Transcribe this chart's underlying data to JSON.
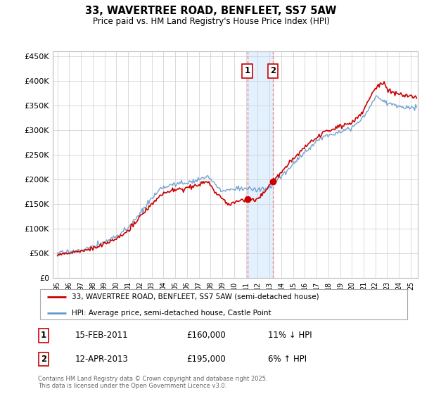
{
  "title": "33, WAVERTREE ROAD, BENFLEET, SS7 5AW",
  "subtitle": "Price paid vs. HM Land Registry's House Price Index (HPI)",
  "legend_line1": "33, WAVERTREE ROAD, BENFLEET, SS7 5AW (semi-detached house)",
  "legend_line2": "HPI: Average price, semi-detached house, Castle Point",
  "transaction1_date": "15-FEB-2011",
  "transaction1_price": "£160,000",
  "transaction1_hpi": "11% ↓ HPI",
  "transaction2_date": "12-APR-2013",
  "transaction2_price": "£195,000",
  "transaction2_hpi": "6% ↑ HPI",
  "footer": "Contains HM Land Registry data © Crown copyright and database right 2025.\nThis data is licensed under the Open Government Licence v3.0.",
  "red_color": "#cc0000",
  "blue_color": "#6699cc",
  "transaction1_x": 2011.12,
  "transaction1_y": 160000,
  "transaction2_x": 2013.29,
  "transaction2_y": 195000,
  "shade_x1": 2011.12,
  "shade_x2": 2013.29,
  "xlim_left": 1994.6,
  "xlim_right": 2025.6,
  "ylim_top": 460000,
  "yticks": [
    0,
    50000,
    100000,
    150000,
    200000,
    250000,
    300000,
    350000,
    400000,
    450000
  ]
}
